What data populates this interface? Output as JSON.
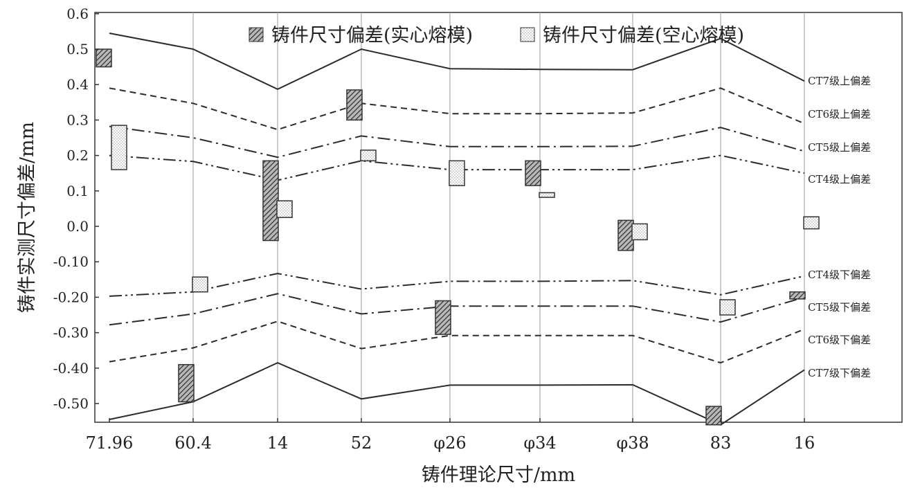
{
  "chart_data": {
    "type": "line",
    "title": "",
    "xlabel": "铸件理论尺寸/mm",
    "ylabel": "铸件实测尺寸偏差/mm",
    "ylim": [
      -0.56,
      0.6
    ],
    "y_ticks": [
      "0.6",
      "0.5",
      "0.4",
      "0.3",
      "0.2",
      "0.1",
      "0.0",
      "-0.10",
      "-0.20",
      "-0.30",
      "-0.40",
      "-0.50"
    ],
    "y_tick_values": [
      0.6,
      0.5,
      0.4,
      0.3,
      0.2,
      0.1,
      0.0,
      -0.1,
      -0.2,
      -0.3,
      -0.4,
      -0.5
    ],
    "categories": [
      "71.96",
      "60.4",
      "14",
      "52",
      "φ26",
      "φ34",
      "φ38",
      "83",
      "16"
    ],
    "grid": "vertical",
    "legend": {
      "position": "top",
      "entries": [
        "铸件尺寸偏差(实心熔模)",
        "铸件尺寸偏差(空心熔模)"
      ]
    },
    "tolerance_lines": [
      {
        "name": "CT7级上偏差",
        "style": "solid",
        "values": [
          0.545,
          0.5,
          0.387,
          0.5,
          0.445,
          0.443,
          0.442,
          0.53,
          0.41
        ]
      },
      {
        "name": "CT6级上偏差",
        "style": "dash",
        "values": [
          0.39,
          0.347,
          0.273,
          0.347,
          0.318,
          0.318,
          0.32,
          0.39,
          0.29
        ]
      },
      {
        "name": "CT5级上偏差",
        "style": "dashdot",
        "values": [
          0.282,
          0.25,
          0.195,
          0.255,
          0.225,
          0.225,
          0.226,
          0.279,
          0.212
        ]
      },
      {
        "name": "CT4级上偏差",
        "style": "dashdotdot",
        "values": [
          0.2,
          0.183,
          0.13,
          0.185,
          0.16,
          0.16,
          0.16,
          0.2,
          0.15
        ]
      },
      {
        "name": "CT4级下偏差",
        "style": "dashdotdot",
        "values": [
          -0.197,
          -0.185,
          -0.133,
          -0.177,
          -0.155,
          -0.155,
          -0.153,
          -0.193,
          -0.14
        ]
      },
      {
        "name": "CT5级下偏差",
        "style": "dashdot",
        "values": [
          -0.278,
          -0.247,
          -0.19,
          -0.247,
          -0.225,
          -0.225,
          -0.225,
          -0.27,
          -0.2
        ]
      },
      {
        "name": "CT6级下偏差",
        "style": "dash",
        "values": [
          -0.382,
          -0.343,
          -0.268,
          -0.345,
          -0.308,
          -0.308,
          -0.308,
          -0.385,
          -0.29
        ]
      },
      {
        "name": "CT7级下偏差",
        "style": "solid",
        "values": [
          -0.545,
          -0.495,
          -0.385,
          -0.487,
          -0.448,
          -0.448,
          -0.447,
          -0.56,
          -0.405
        ]
      }
    ],
    "series": [
      {
        "name": "铸件尺寸偏差(实心熔模)",
        "pattern": "hatched",
        "ranges": [
          [
            0.45,
            0.5
          ],
          [
            -0.495,
            -0.39
          ],
          [
            -0.04,
            0.185
          ],
          [
            0.3,
            0.385
          ],
          [
            -0.305,
            -0.21
          ],
          [
            0.115,
            0.185
          ],
          [
            -0.068,
            0.017
          ],
          [
            -0.56,
            -0.508
          ],
          [
            -0.205,
            -0.185
          ]
        ]
      },
      {
        "name": "铸件尺寸偏差(空心熔模)",
        "pattern": "dotted",
        "ranges": [
          [
            0.16,
            0.285
          ],
          [
            -0.185,
            -0.143
          ],
          [
            0.025,
            0.072
          ],
          [
            0.185,
            0.215
          ],
          [
            0.115,
            0.185
          ],
          [
            0.082,
            0.095
          ],
          [
            -0.038,
            0.007
          ],
          [
            -0.25,
            -0.207
          ],
          [
            -0.007,
            0.027
          ]
        ]
      }
    ],
    "colors": {
      "line": "#2b2b2b",
      "hatch": "#2b2b2b",
      "box_stroke": "#333333",
      "grid": "#9a9a9a"
    }
  }
}
